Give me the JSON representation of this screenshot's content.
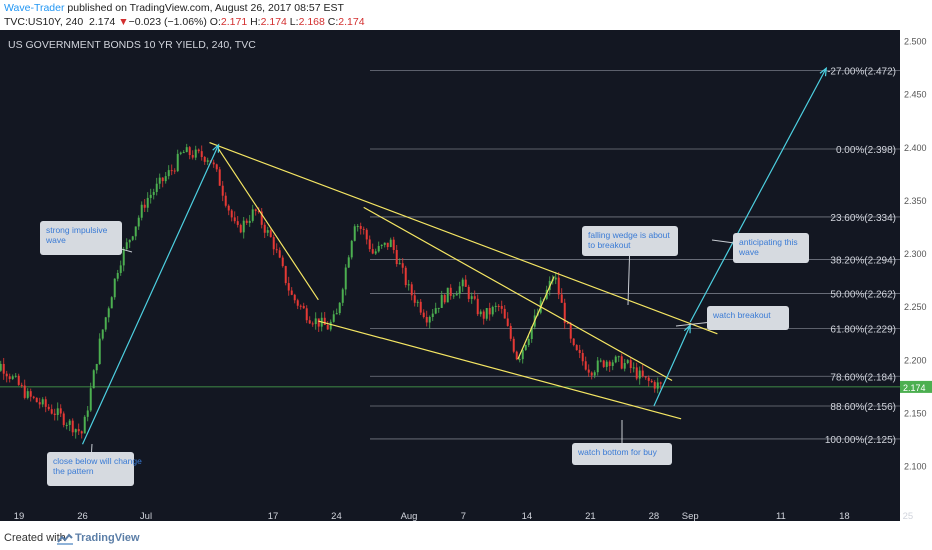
{
  "header": {
    "author": "Wave-Trader",
    "published_on": " published on TradingView.com, August 26, 2017 08:57 EST",
    "symbol": "TVC:US10Y, 240",
    "last": "2.174",
    "arrow": "▼",
    "change": "−0.023 (−1.06%)",
    "o_label": "O:",
    "o_value": "2.171",
    "h_label": "H:",
    "h_value": "2.174",
    "l_label": "L:",
    "l_value": "2.168",
    "c_label": "C:",
    "c_value": "2.174"
  },
  "footer": {
    "created_with": "Created with",
    "brand": "TradingView"
  },
  "colors": {
    "background": "#131722",
    "up": "#4caf50",
    "down": "#e53935",
    "fib": "#9ea3ae",
    "trendline": "#f5e663",
    "arrow": "#4dd0e1",
    "current_price": "#4caf50",
    "note_bg": "#d6dae0",
    "note_text": "#3a7bd5"
  },
  "chart_data": {
    "type": "candlestick",
    "title": "US GOVERNMENT BONDS 10 YR YIELD, 240, TVC",
    "x_ticks": [
      "19",
      "26",
      "Jul",
      "17",
      "24",
      "Aug",
      "7",
      "14",
      "21",
      "28",
      "Sep",
      "11",
      "18",
      "25"
    ],
    "y_ticks": [
      2.5,
      2.45,
      2.4,
      2.35,
      2.3,
      2.25,
      2.2,
      2.15,
      2.1
    ],
    "ylim": [
      2.06,
      2.51
    ],
    "current_price": 2.174,
    "grid": false,
    "fib_levels": [
      {
        "label": "-27.00%(2.472)",
        "price": 2.472
      },
      {
        "label": "0.00%(2.398)",
        "price": 2.398
      },
      {
        "label": "23.60%(2.334)",
        "price": 2.334
      },
      {
        "label": "38.20%(2.294)",
        "price": 2.294
      },
      {
        "label": "50.00%(2.262)",
        "price": 2.262
      },
      {
        "label": "61.80%(2.229)",
        "price": 2.229
      },
      {
        "label": "78.60%(2.184)",
        "price": 2.184
      },
      {
        "label": "88.60%(2.156)",
        "price": 2.156
      },
      {
        "label": "100.00%(2.125)",
        "price": 2.125
      }
    ],
    "price_path": [
      {
        "date": "2017-06-15",
        "price": 2.18
      },
      {
        "date": "2017-06-17",
        "price": 2.195
      },
      {
        "date": "2017-06-20",
        "price": 2.165
      },
      {
        "date": "2017-06-23",
        "price": 2.15
      },
      {
        "date": "2017-06-26",
        "price": 2.13
      },
      {
        "date": "2017-06-28",
        "price": 2.22
      },
      {
        "date": "2017-06-30",
        "price": 2.29
      },
      {
        "date": "2017-07-03",
        "price": 2.35
      },
      {
        "date": "2017-07-06",
        "price": 2.38
      },
      {
        "date": "2017-07-07",
        "price": 2.395
      },
      {
        "date": "2017-07-10",
        "price": 2.39
      },
      {
        "date": "2017-07-11",
        "price": 2.37
      },
      {
        "date": "2017-07-13",
        "price": 2.32
      },
      {
        "date": "2017-07-15",
        "price": 2.34
      },
      {
        "date": "2017-07-17",
        "price": 2.31
      },
      {
        "date": "2017-07-19",
        "price": 2.26
      },
      {
        "date": "2017-07-21",
        "price": 2.24
      },
      {
        "date": "2017-07-23",
        "price": 2.23
      },
      {
        "date": "2017-07-24",
        "price": 2.24
      },
      {
        "date": "2017-07-26",
        "price": 2.33
      },
      {
        "date": "2017-07-27",
        "price": 2.32
      },
      {
        "date": "2017-07-28",
        "price": 2.3
      },
      {
        "date": "2017-07-30",
        "price": 2.31
      },
      {
        "date": "2017-08-01",
        "price": 2.265
      },
      {
        "date": "2017-08-03",
        "price": 2.24
      },
      {
        "date": "2017-08-05",
        "price": 2.26
      },
      {
        "date": "2017-08-07",
        "price": 2.27
      },
      {
        "date": "2017-08-09",
        "price": 2.24
      },
      {
        "date": "2017-08-11",
        "price": 2.25
      },
      {
        "date": "2017-08-13",
        "price": 2.2
      },
      {
        "date": "2017-08-15",
        "price": 2.24
      },
      {
        "date": "2017-08-17",
        "price": 2.28
      },
      {
        "date": "2017-08-19",
        "price": 2.21
      },
      {
        "date": "2017-08-21",
        "price": 2.19
      },
      {
        "date": "2017-08-23",
        "price": 2.2
      },
      {
        "date": "2017-08-25",
        "price": 2.195
      },
      {
        "date": "2017-08-27",
        "price": 2.18
      },
      {
        "date": "2017-08-29",
        "price": 2.174
      }
    ],
    "trendlines": [
      {
        "from": {
          "date": "2017-07-10",
          "price": 2.404
        },
        "to": {
          "date": "2017-09-04",
          "price": 2.224
        }
      },
      {
        "from": {
          "date": "2017-07-22",
          "price": 2.236
        },
        "to": {
          "date": "2017-08-31",
          "price": 2.144
        }
      },
      {
        "from": {
          "date": "2017-07-27",
          "price": 2.343
        },
        "to": {
          "date": "2017-08-30",
          "price": 2.18
        }
      },
      {
        "from": {
          "date": "2017-07-11",
          "price": 2.398
        },
        "to": {
          "date": "2017-07-22",
          "price": 2.256
        }
      },
      {
        "from": {
          "date": "2017-08-13",
          "price": 2.2
        },
        "to": {
          "date": "2017-08-17",
          "price": 2.278
        }
      }
    ],
    "arrows": [
      {
        "from": {
          "date": "2017-06-26",
          "price": 2.12
        },
        "to": {
          "date": "2017-07-11",
          "price": 2.402
        }
      },
      {
        "from": {
          "date": "2017-08-28",
          "price": 2.156
        },
        "to": {
          "date": "2017-09-01",
          "price": 2.232
        }
      },
      {
        "from": {
          "date": "2017-09-01",
          "price": 2.235
        },
        "to": {
          "date": "2017-09-16",
          "price": 2.474
        }
      }
    ],
    "annotations": [
      {
        "text": "strong impulsive wave",
        "lines": [
          "strong impulsive",
          "wave"
        ]
      },
      {
        "text": "close below will change the pattern",
        "lines": [
          "close below will change",
          "the pattern"
        ]
      },
      {
        "text": "falling wedge is about to breakout",
        "lines": [
          "falling wedge is about",
          "to breakout"
        ]
      },
      {
        "text": "anticipating this wave",
        "lines": [
          "anticipating this",
          "wave"
        ]
      },
      {
        "text": "watch breakout",
        "lines": [
          "watch breakout"
        ]
      },
      {
        "text": "watch bottom for buy",
        "lines": [
          "watch bottom for buy"
        ]
      }
    ]
  }
}
